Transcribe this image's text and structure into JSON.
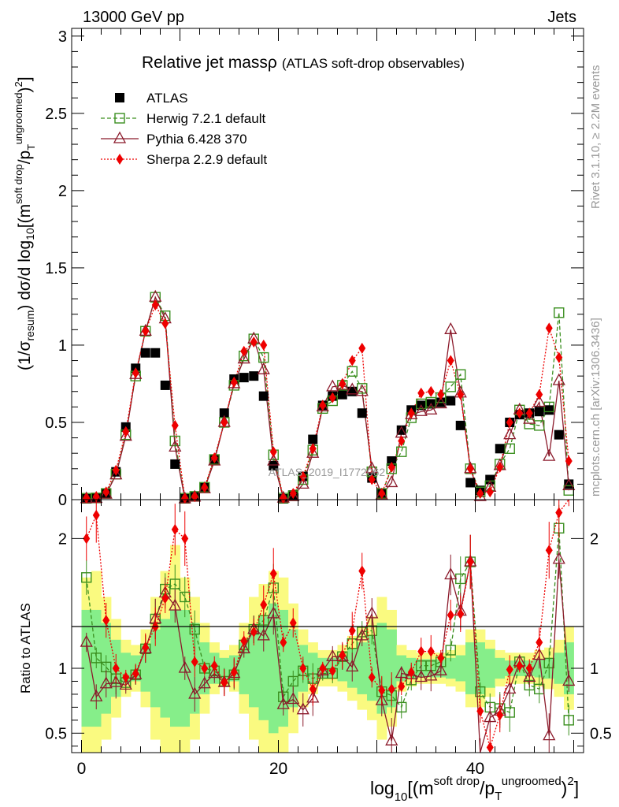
{
  "header": {
    "left": "13000 GeV pp",
    "right": "Jets"
  },
  "side_text": {
    "rivet": "Rivet 3.1.10, ≥ 2.2M events",
    "mcplots": "mcplots.cern.ch [arXiv:1306.3436]"
  },
  "watermark": "ATLAS_2019_I1772062",
  "chart_data": {
    "type": "scatter",
    "title": "Relative jet massρ",
    "subtitle": "(ATLAS soft-drop observables)",
    "xlabel": "log10[(m^{soft drop}/p_T^{ungroomed})^2]",
    "ylabel": "(1/σ_resum) dσ/d log10[(m^{soft drop}/p_T^{ungroomed})^2]",
    "ratio_ylabel": "Ratio to ATLAS",
    "xlim": [
      -1,
      51
    ],
    "ylim": [
      0,
      3.05
    ],
    "ratio_ylim": [
      0.35,
      2.3
    ],
    "x_ticks": [
      0,
      20,
      40
    ],
    "y_ticks": [
      0,
      0.5,
      1,
      1.5,
      2,
      2.5,
      3
    ],
    "ratio_ticks": [
      0.5,
      1,
      2
    ],
    "legend_position": "top-left",
    "x": [
      0.5,
      1.5,
      2.5,
      3.5,
      4.5,
      5.5,
      6.5,
      7.5,
      8.5,
      9.5,
      10.5,
      11.5,
      12.5,
      13.5,
      14.5,
      15.5,
      16.5,
      17.5,
      18.5,
      19.5,
      20.5,
      21.5,
      22.5,
      23.5,
      24.5,
      25.5,
      26.5,
      27.5,
      28.5,
      29.5,
      30.5,
      31.5,
      32.5,
      33.5,
      34.5,
      35.5,
      36.5,
      37.5,
      38.5,
      39.5,
      40.5,
      41.5,
      42.5,
      43.5,
      44.5,
      45.5,
      46.5,
      47.5,
      48.5,
      49.5
    ],
    "series": [
      {
        "name": "ATLAS",
        "color": "#000000",
        "values": [
          0.005,
          0.01,
          0.04,
          0.18,
          0.47,
          0.85,
          0.95,
          0.95,
          0.74,
          0.23,
          0.005,
          0.02,
          0.08,
          0.26,
          0.56,
          0.78,
          0.79,
          0.8,
          0.67,
          0.22,
          0.005,
          0.03,
          0.15,
          0.39,
          0.61,
          0.67,
          0.68,
          0.7,
          0.56,
          0.14,
          0.04,
          0.25,
          0.45,
          0.58,
          0.61,
          0.62,
          0.63,
          0.64,
          0.48,
          0.11,
          0.06,
          0.13,
          0.33,
          0.5,
          0.55,
          0.56,
          0.57,
          0.58,
          0.42,
          0.1
        ],
        "band_1sigma": [
          0.45,
          0.45,
          0.35,
          0.22,
          0.12,
          0.1,
          0.18,
          0.3,
          0.38,
          0.45,
          0.45,
          0.35,
          0.2,
          0.12,
          0.08,
          0.1,
          0.2,
          0.3,
          0.4,
          0.5,
          0.45,
          0.3,
          0.18,
          0.12,
          0.08,
          0.08,
          0.1,
          0.15,
          0.2,
          0.25,
          0.35,
          0.3,
          0.1,
          0.08,
          0.07,
          0.07,
          0.07,
          0.08,
          0.1,
          0.2,
          0.2,
          0.15,
          0.08,
          0.06,
          0.06,
          0.06,
          0.07,
          0.08,
          0.12,
          0.2
        ],
        "band_2sigma": [
          0.7,
          0.75,
          0.55,
          0.38,
          0.22,
          0.18,
          0.3,
          0.55,
          0.75,
          0.95,
          0.7,
          0.55,
          0.35,
          0.2,
          0.14,
          0.18,
          0.35,
          0.55,
          0.65,
          0.75,
          0.7,
          0.5,
          0.3,
          0.2,
          0.14,
          0.14,
          0.18,
          0.25,
          0.32,
          0.4,
          0.55,
          0.45,
          0.18,
          0.14,
          0.12,
          0.12,
          0.12,
          0.14,
          0.18,
          0.3,
          0.3,
          0.22,
          0.14,
          0.12,
          0.12,
          0.12,
          0.14,
          0.16,
          0.22,
          0.32
        ]
      },
      {
        "name": "Herwig 7.2.1 default",
        "color": "#3a8f1f",
        "values": [
          0.009,
          0.011,
          0.04,
          0.165,
          0.42,
          0.8,
          1.09,
          1.31,
          1.19,
          0.38,
          0.009,
          0.021,
          0.08,
          0.26,
          0.5,
          0.74,
          0.93,
          1.04,
          0.92,
          0.29,
          0.01,
          0.025,
          0.13,
          0.32,
          0.59,
          0.64,
          0.74,
          0.83,
          0.72,
          0.18,
          0.04,
          0.2,
          0.31,
          0.53,
          0.62,
          0.63,
          0.66,
          0.73,
          0.81,
          0.2,
          0.05,
          0.09,
          0.23,
          0.33,
          0.58,
          0.49,
          0.48,
          0.6,
          1.21,
          0.06
        ],
        "ratio": [
          1.7,
          1.08,
          1.01,
          0.92,
          0.89,
          0.95,
          1.15,
          1.38,
          1.61,
          1.65,
          1.55,
          1.3,
          1.0,
          0.98,
          0.9,
          0.95,
          1.18,
          1.3,
          1.37,
          1.62,
          0.78,
          0.9,
          0.98,
          0.92,
          0.96,
          0.96,
          1.09,
          1.19,
          1.28,
          1.29,
          0.82,
          0.79,
          0.7,
          0.91,
          1.02,
          1.02,
          1.05,
          1.14,
          1.69,
          1.82,
          0.82,
          0.7,
          0.69,
          0.66,
          1.05,
          0.87,
          0.84,
          1.04,
          2.08,
          0.6
        ]
      },
      {
        "name": "Pythia 6.428 370",
        "color": "#8b1a2b",
        "values": [
          0.006,
          0.008,
          0.035,
          0.16,
          0.41,
          0.81,
          1.09,
          1.31,
          1.17,
          0.34,
          0.005,
          0.016,
          0.07,
          0.25,
          0.5,
          0.75,
          0.91,
          1.04,
          0.84,
          0.25,
          0.01,
          0.02,
          0.1,
          0.3,
          0.6,
          0.73,
          0.74,
          0.71,
          0.7,
          0.2,
          0.03,
          0.11,
          0.43,
          0.55,
          0.57,
          0.58,
          0.62,
          1.1,
          0.69,
          0.2,
          0.02,
          0.08,
          0.22,
          0.42,
          0.58,
          0.52,
          0.63,
          0.28,
          0.77,
          0.09
        ],
        "ratio": [
          1.2,
          0.78,
          0.88,
          0.89,
          0.87,
          0.95,
          1.15,
          1.38,
          1.58,
          1.48,
          1.0,
          0.8,
          0.88,
          0.96,
          0.89,
          0.96,
          1.15,
          1.3,
          1.25,
          1.42,
          0.72,
          0.76,
          0.68,
          0.77,
          0.98,
          1.09,
          1.09,
          1.01,
          1.25,
          1.42,
          0.75,
          0.44,
          0.96,
          0.95,
          0.93,
          0.94,
          0.98,
          1.72,
          1.44,
          1.82,
          0.33,
          0.62,
          0.67,
          0.84,
          1.05,
          0.93,
          1.1,
          0.48,
          1.84,
          0.9
        ]
      },
      {
        "name": "Sherpa 2.2.9 default",
        "color": "#ee0000",
        "values": [
          0.01,
          0.02,
          0.05,
          0.19,
          0.44,
          0.82,
          1.09,
          1.26,
          1.14,
          0.48,
          0.01,
          0.02,
          0.08,
          0.27,
          0.5,
          0.76,
          0.96,
          1.02,
          1.0,
          0.31,
          0.01,
          0.04,
          0.15,
          0.33,
          0.61,
          0.66,
          0.75,
          0.9,
          0.98,
          0.13,
          0.04,
          0.21,
          0.38,
          0.56,
          0.69,
          0.7,
          0.68,
          0.9,
          0.68,
          0.2,
          0.04,
          0.05,
          0.21,
          0.5,
          0.56,
          0.56,
          0.68,
          1.11,
          0.92,
          0.25
        ],
        "ratio": [
          2.0,
          2.18,
          1.37,
          1.0,
          0.93,
          0.96,
          1.16,
          1.32,
          1.54,
          2.07,
          2.0,
          1.05,
          1.0,
          1.02,
          0.89,
          0.97,
          1.21,
          1.28,
          1.49,
          1.73,
          1.2,
          1.35,
          1.0,
          0.84,
          1.0,
          0.98,
          1.1,
          1.29,
          1.75,
          0.93,
          0.83,
          0.84,
          0.86,
          0.97,
          1.13,
          1.13,
          1.08,
          1.41,
          1.42,
          1.82,
          0.67,
          0.39,
          0.64,
          0.99,
          1.02,
          1.0,
          1.2,
          1.91,
          2.2,
          2.5
        ]
      }
    ]
  }
}
